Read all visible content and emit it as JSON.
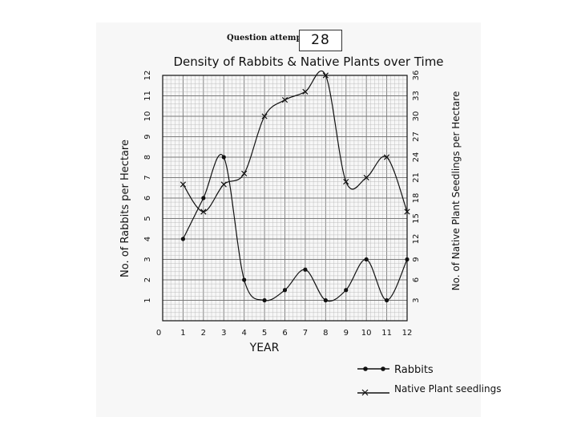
{
  "header": {
    "question_label": "Question attempted",
    "question_number": "28"
  },
  "chart_data": {
    "type": "line",
    "title": "Density of Rabbits & Native Plants over Time",
    "xlabel": "YEAR",
    "ylabel_left": "No. of Rabbits per Hectare",
    "ylabel_right": "No. of Native Plant Seedlings per Hectare",
    "x_ticks": [
      "0",
      "1",
      "2",
      "3",
      "4",
      "5",
      "6",
      "7",
      "8",
      "9",
      "10",
      "11",
      "12"
    ],
    "y_left_ticks": [
      "1",
      "2",
      "3",
      "4",
      "5",
      "6",
      "7",
      "8",
      "9",
      "10",
      "11",
      "12"
    ],
    "y_right_ticks": [
      "3",
      "6",
      "9",
      "12",
      "15",
      "18",
      "21",
      "24",
      "27",
      "30",
      "33",
      "36"
    ],
    "xlim": [
      0,
      12
    ],
    "ylim_left": [
      0,
      12
    ],
    "ylim_right": [
      0,
      36
    ],
    "grid": true,
    "legend_position": "bottom-right",
    "series": [
      {
        "name": "Rabbits",
        "axis": "left",
        "marker": "dot",
        "x": [
          1,
          2,
          3,
          4,
          5,
          6,
          7,
          8,
          9,
          10,
          11,
          12
        ],
        "values": [
          4,
          6,
          8,
          2,
          1,
          1.5,
          2.5,
          1,
          1.5,
          3,
          1,
          3
        ]
      },
      {
        "name": "Native Plant seedlings",
        "axis": "right",
        "marker": "x",
        "x": [
          1,
          2,
          3,
          4,
          5,
          6,
          7,
          8,
          9,
          10,
          11,
          12
        ],
        "values": [
          20,
          16,
          20,
          21.6,
          30,
          32.4,
          33.6,
          36,
          20.4,
          21,
          24,
          16
        ]
      }
    ],
    "colors": {
      "ink": "#111111",
      "grid_minor": "#b9b9b9",
      "grid_major": "#7a7a7a"
    }
  }
}
